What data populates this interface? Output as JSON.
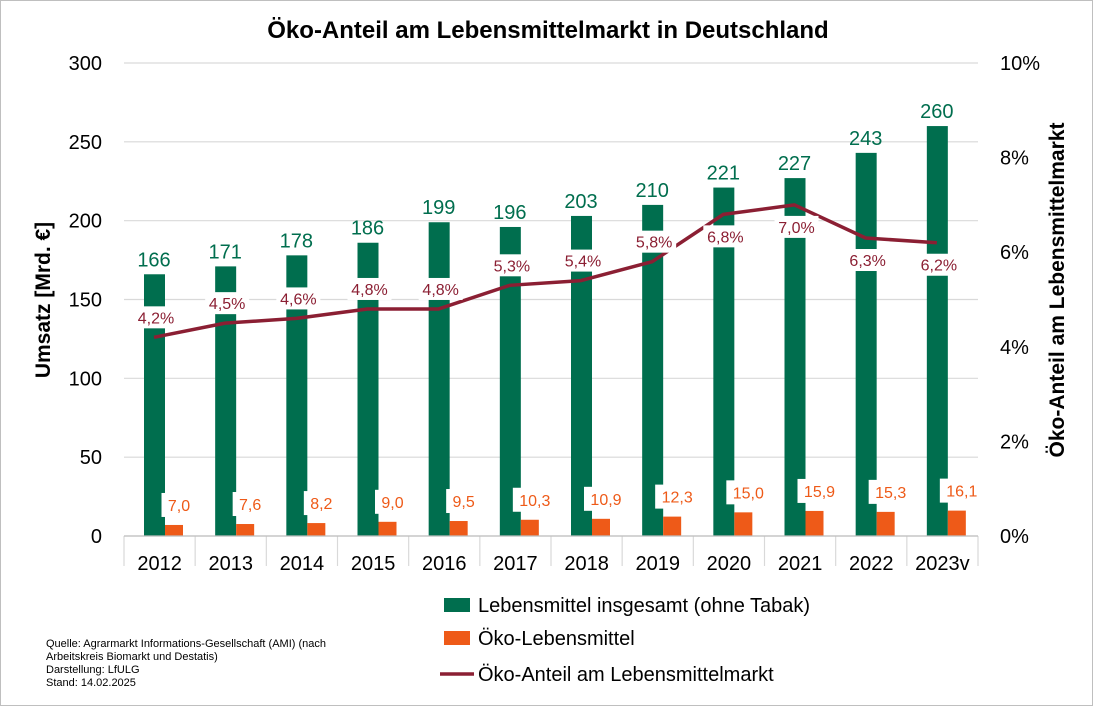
{
  "chart_data": {
    "type": "bar",
    "title": "Öko-Anteil am Lebensmittelmarkt in Deutschland",
    "ylabel": "Umsatz [Mrd. €]",
    "y2label": "Öko-Anteil am Lebensmittelmarkt",
    "categories": [
      "2012",
      "2013",
      "2014",
      "2015",
      "2016",
      "2017",
      "2018",
      "2019",
      "2020",
      "2021",
      "2022",
      "2023v"
    ],
    "ylim": [
      0,
      300
    ],
    "yticks": [
      "0",
      "50",
      "100",
      "150",
      "200",
      "250",
      "300"
    ],
    "y2lim": [
      0,
      10
    ],
    "y2ticks": [
      "0%",
      "2%",
      "4%",
      "6%",
      "8%",
      "10%"
    ],
    "grid": true,
    "legend_position": "bottom",
    "series": [
      {
        "name": "Lebensmittel insgesamt (ohne Tabak)",
        "kind": "bar",
        "axis": "left",
        "color": "#006e4e",
        "values": [
          166,
          171,
          178,
          186,
          199,
          196,
          203,
          210,
          221,
          227,
          243,
          260
        ],
        "labels": [
          "166",
          "171",
          "178",
          "186",
          "199",
          "196",
          "203",
          "210",
          "221",
          "227",
          "243",
          "260"
        ]
      },
      {
        "name": "Öko-Lebensmittel",
        "kind": "bar",
        "axis": "left",
        "color": "#ee5a18",
        "values": [
          7.0,
          7.6,
          8.2,
          9.0,
          9.5,
          10.3,
          10.9,
          12.3,
          15.0,
          15.9,
          15.3,
          16.1
        ],
        "labels": [
          "7,0",
          "7,6",
          "8,2",
          "9,0",
          "9,5",
          "10,3",
          "10,9",
          "12,3",
          "15,0",
          "15,9",
          "15,3",
          "16,1"
        ]
      },
      {
        "name": "Öko-Anteil am Lebensmittelmarkt",
        "kind": "line",
        "axis": "right",
        "color": "#8b1f33",
        "values": [
          4.2,
          4.5,
          4.6,
          4.8,
          4.8,
          5.3,
          5.4,
          5.8,
          6.8,
          7.0,
          6.3,
          6.2
        ],
        "labels": [
          "4,2%",
          "4,5%",
          "4,6%",
          "4,8%",
          "4,8%",
          "5,3%",
          "5,4%",
          "5,8%",
          "6,8%",
          "7,0%",
          "6,3%",
          "6,2%"
        ]
      }
    ]
  },
  "source_note": [
    "Quelle: Agrarmarkt Informations-Gesellschaft (AMI) (nach",
    "Arbeitskreis Biomarkt und Destatis)",
    "Darstellung: LfULG",
    "Stand: 14.02.2025"
  ]
}
